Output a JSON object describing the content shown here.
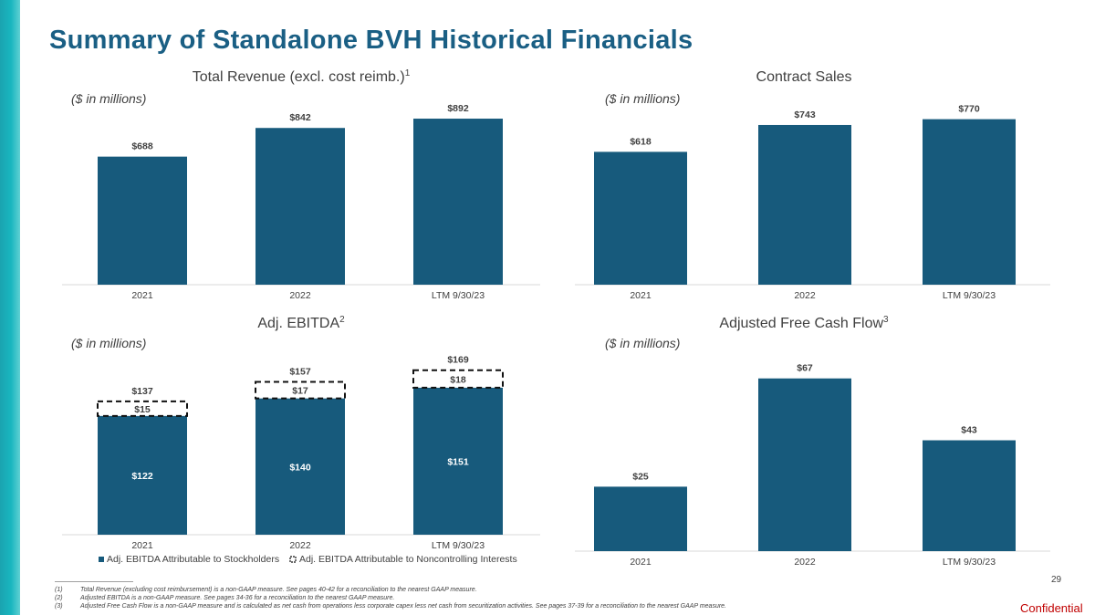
{
  "page": {
    "title": "Summary of Standalone BVH Historical Financials",
    "page_number": "29",
    "confidential": "Confidential",
    "footnotes": [
      {
        "num": "(1)",
        "text": "Total Revenue (excluding cost reimbursement) is a non-GAAP measure. See pages 40-42 for a reconciliation to the nearest GAAP measure."
      },
      {
        "num": "(2)",
        "text": "Adjusted EBITDA is a non-GAAP measure. See pages 34-36 for a reconciliation to the nearest GAAP measure."
      },
      {
        "num": "(3)",
        "text": "Adjusted Free Cash Flow is a non-GAAP measure and is calculated as net cash from operations less corporate capex less net cash from securitization activities. See pages 37-39 for a reconciliation to the nearest GAAP measure."
      }
    ]
  },
  "colors": {
    "bar": "#175a7c",
    "title": "#1a5f84",
    "accent": "#1aa3b0",
    "confidential": "#c00000"
  },
  "chart_data": [
    {
      "id": "revenue",
      "type": "bar",
      "title": "Total Revenue (excl. cost reimb.)",
      "title_sup": "1",
      "units": "($ in millions)",
      "categories": [
        "2021",
        "2022",
        "LTM 9/30/23"
      ],
      "values": [
        688,
        842,
        892
      ],
      "labels": [
        "$688",
        "$842",
        "$892"
      ],
      "ylim": [
        0,
        1000
      ]
    },
    {
      "id": "contract-sales",
      "type": "bar",
      "title": "Contract Sales",
      "title_sup": "",
      "units": "($ in millions)",
      "categories": [
        "2021",
        "2022",
        "LTM 9/30/23"
      ],
      "values": [
        618,
        743,
        770
      ],
      "labels": [
        "$618",
        "$743",
        "$770"
      ],
      "ylim": [
        0,
        866
      ]
    },
    {
      "id": "ebitda",
      "type": "bar",
      "stacked": true,
      "title": "Adj. EBITDA",
      "title_sup": "2",
      "units": "($ in millions)",
      "categories": [
        "2021",
        "2022",
        "LTM 9/30/23"
      ],
      "series": [
        {
          "name": "Adj. EBITDA Attributable to Stockholders",
          "values": [
            122,
            140,
            151
          ],
          "labels": [
            "$122",
            "$140",
            "$151"
          ]
        },
        {
          "name": "Adj. EBITDA Attributable to Noncontrolling Interests",
          "values": [
            15,
            17,
            18
          ],
          "labels": [
            "$15",
            "$17",
            "$18"
          ]
        }
      ],
      "totals": [
        137,
        157,
        169
      ],
      "total_labels": [
        "$137",
        "$157",
        "$169"
      ],
      "ylim": [
        0,
        195
      ]
    },
    {
      "id": "fcf",
      "type": "bar",
      "title": "Adjusted Free Cash Flow",
      "title_sup": "3",
      "units": "($ in millions)",
      "categories": [
        "2021",
        "2022",
        "LTM 9/30/23"
      ],
      "values": [
        25,
        67,
        43
      ],
      "labels": [
        "$25",
        "$67",
        "$43"
      ],
      "ylim": [
        0,
        80
      ]
    }
  ]
}
